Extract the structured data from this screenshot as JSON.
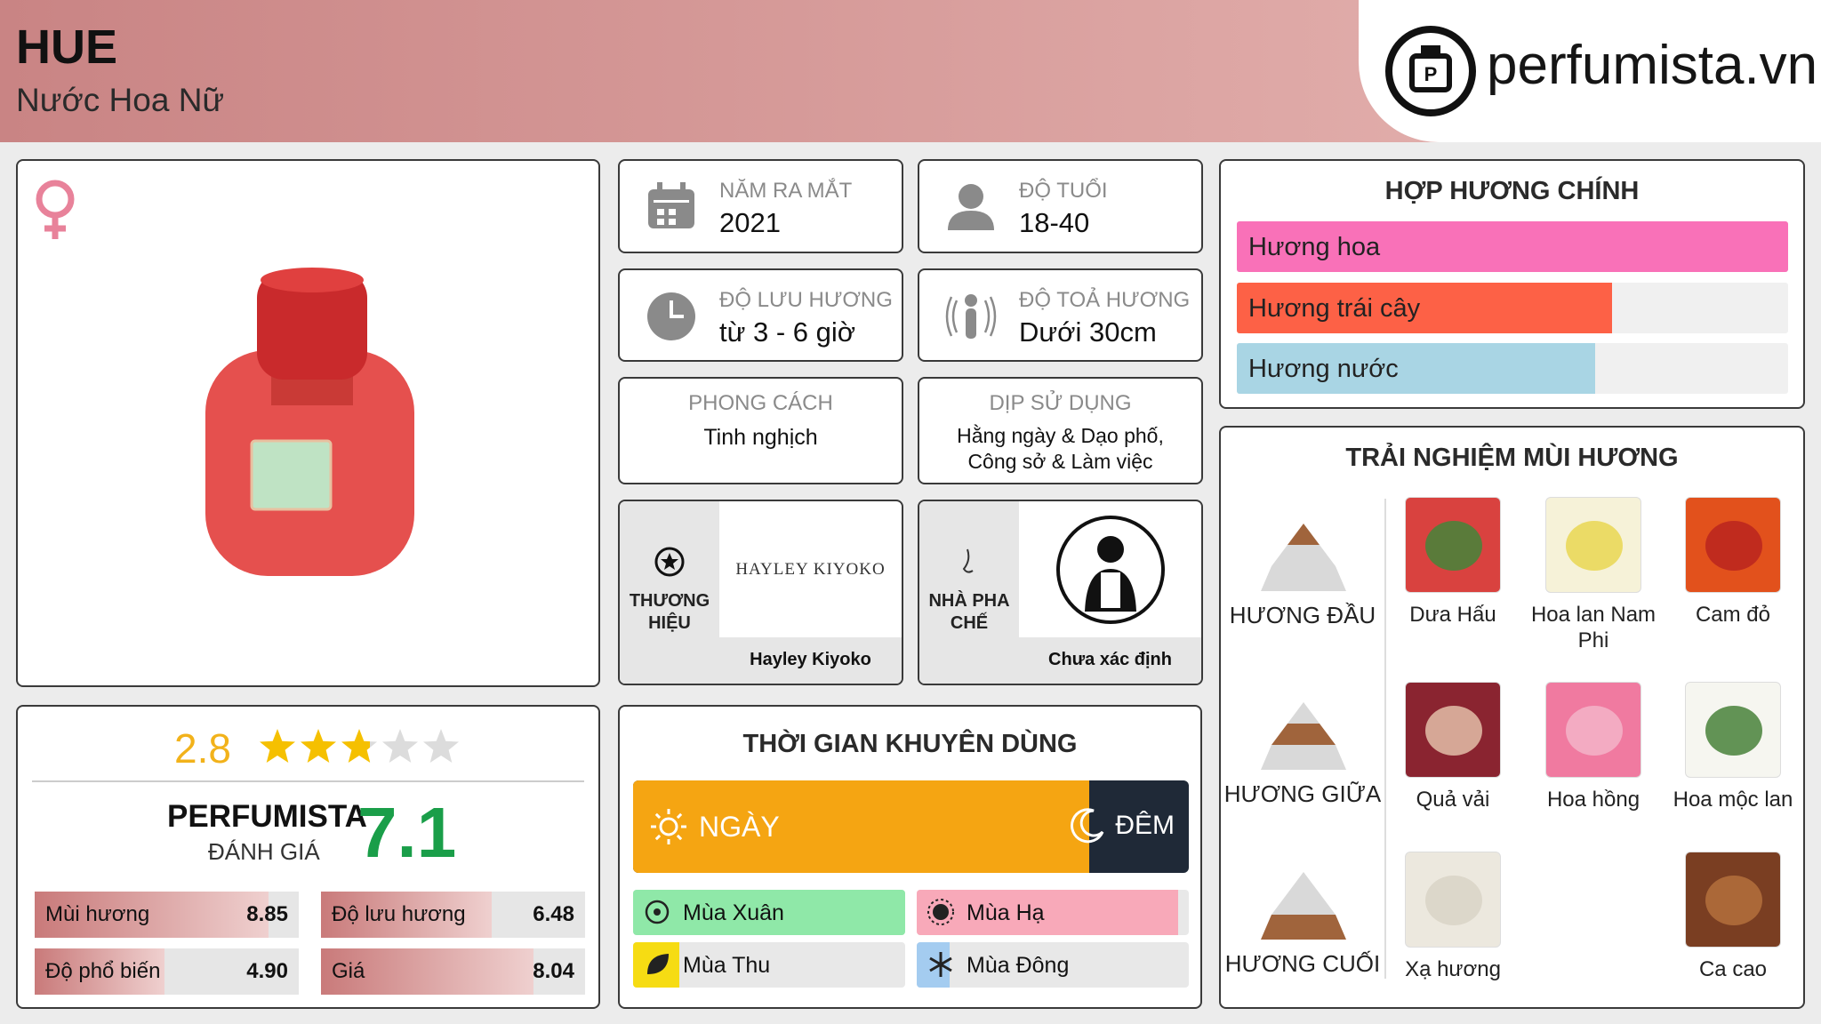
{
  "header": {
    "title": "HUE",
    "subtitle": "Nước Hoa Nữ",
    "logo": "perfumista.vn"
  },
  "info": [
    {
      "label": "NĂM RA MẮT",
      "value": "2021"
    },
    {
      "label": "ĐỘ TUỔI",
      "value": "18-40"
    },
    {
      "label": "ĐỘ LƯU HƯƠNG",
      "value": "từ 3 - 6 giờ"
    },
    {
      "label": "ĐỘ TOẢ HƯƠNG",
      "value": "Dưới 30cm"
    },
    {
      "label": "PHONG CÁCH",
      "value": "Tinh nghịch"
    },
    {
      "label": "DỊP SỬ DỤNG",
      "value": "Hằng ngày & Dạo phố, Công sở & Làm việc"
    }
  ],
  "brand": {
    "label": "THƯƠNG HIỆU",
    "logo": "HAYLEY KIYOKO",
    "name": "Hayley Kiyoko"
  },
  "perfumer": {
    "label": "NHÀ PHA CHẾ",
    "name": "Chưa xác định"
  },
  "rating": {
    "score": 2.8,
    "xlim": [
      0,
      5
    ],
    "perfumista_label": "PERFUMISTA",
    "perfumista_sublabel": "ĐÁNH GIÁ",
    "perfumista_score": 7.1,
    "scores_xlim": [
      0,
      10
    ],
    "scores": [
      {
        "name": "Mùi hương",
        "value": 8.85
      },
      {
        "name": "Độ lưu hương",
        "value": 6.48
      },
      {
        "name": "Độ phổ biến",
        "value": 4.9,
        "value_label": "4.90"
      },
      {
        "name": "Giá",
        "value": 8.04
      }
    ]
  },
  "time": {
    "title": "THỜI GIAN KHUYÊN DÙNG",
    "day_label": "NGÀY",
    "night_label": "ĐÊM",
    "day": 82,
    "xlim": [
      0,
      100
    ],
    "day_color": "#f5a512",
    "night_color": "#1f2937",
    "seasons": [
      {
        "name": "Mùa Xuân",
        "value": 100,
        "color": "#8fe8a8"
      },
      {
        "name": "Mùa Hạ",
        "value": 96,
        "color": "#f8a9b9"
      },
      {
        "name": "Mùa Thu",
        "value": 17,
        "color": "#f6dc13"
      },
      {
        "name": "Mùa Đông",
        "value": 12,
        "color": "#a4ccf0"
      }
    ]
  },
  "accords": {
    "title": "HỢP HƯƠNG CHÍNH",
    "xlim": [
      0,
      100
    ],
    "items": [
      {
        "name": "Hương hoa",
        "value": 100,
        "color": "#f971b8"
      },
      {
        "name": "Hương trái cây",
        "value": 68,
        "color": "#fd6146"
      },
      {
        "name": "Hương nước",
        "value": 65,
        "color": "#a9d5e4"
      }
    ]
  },
  "notes": {
    "title": "TRẢI NGHIỆM MÙI HƯƠNG",
    "tiers": [
      {
        "name": "HƯƠNG ĐẦU",
        "items": [
          "Dưa Hấu",
          "Hoa lan Nam Phi",
          "Cam đỏ"
        ]
      },
      {
        "name": "HƯƠNG GIỮA",
        "items": [
          "Quả vải",
          "Hoa hồng",
          "Hoa mộc lan"
        ]
      },
      {
        "name": "HƯƠNG CUỐI",
        "items": [
          "Xạ hương",
          null,
          "Ca cao"
        ]
      }
    ]
  }
}
